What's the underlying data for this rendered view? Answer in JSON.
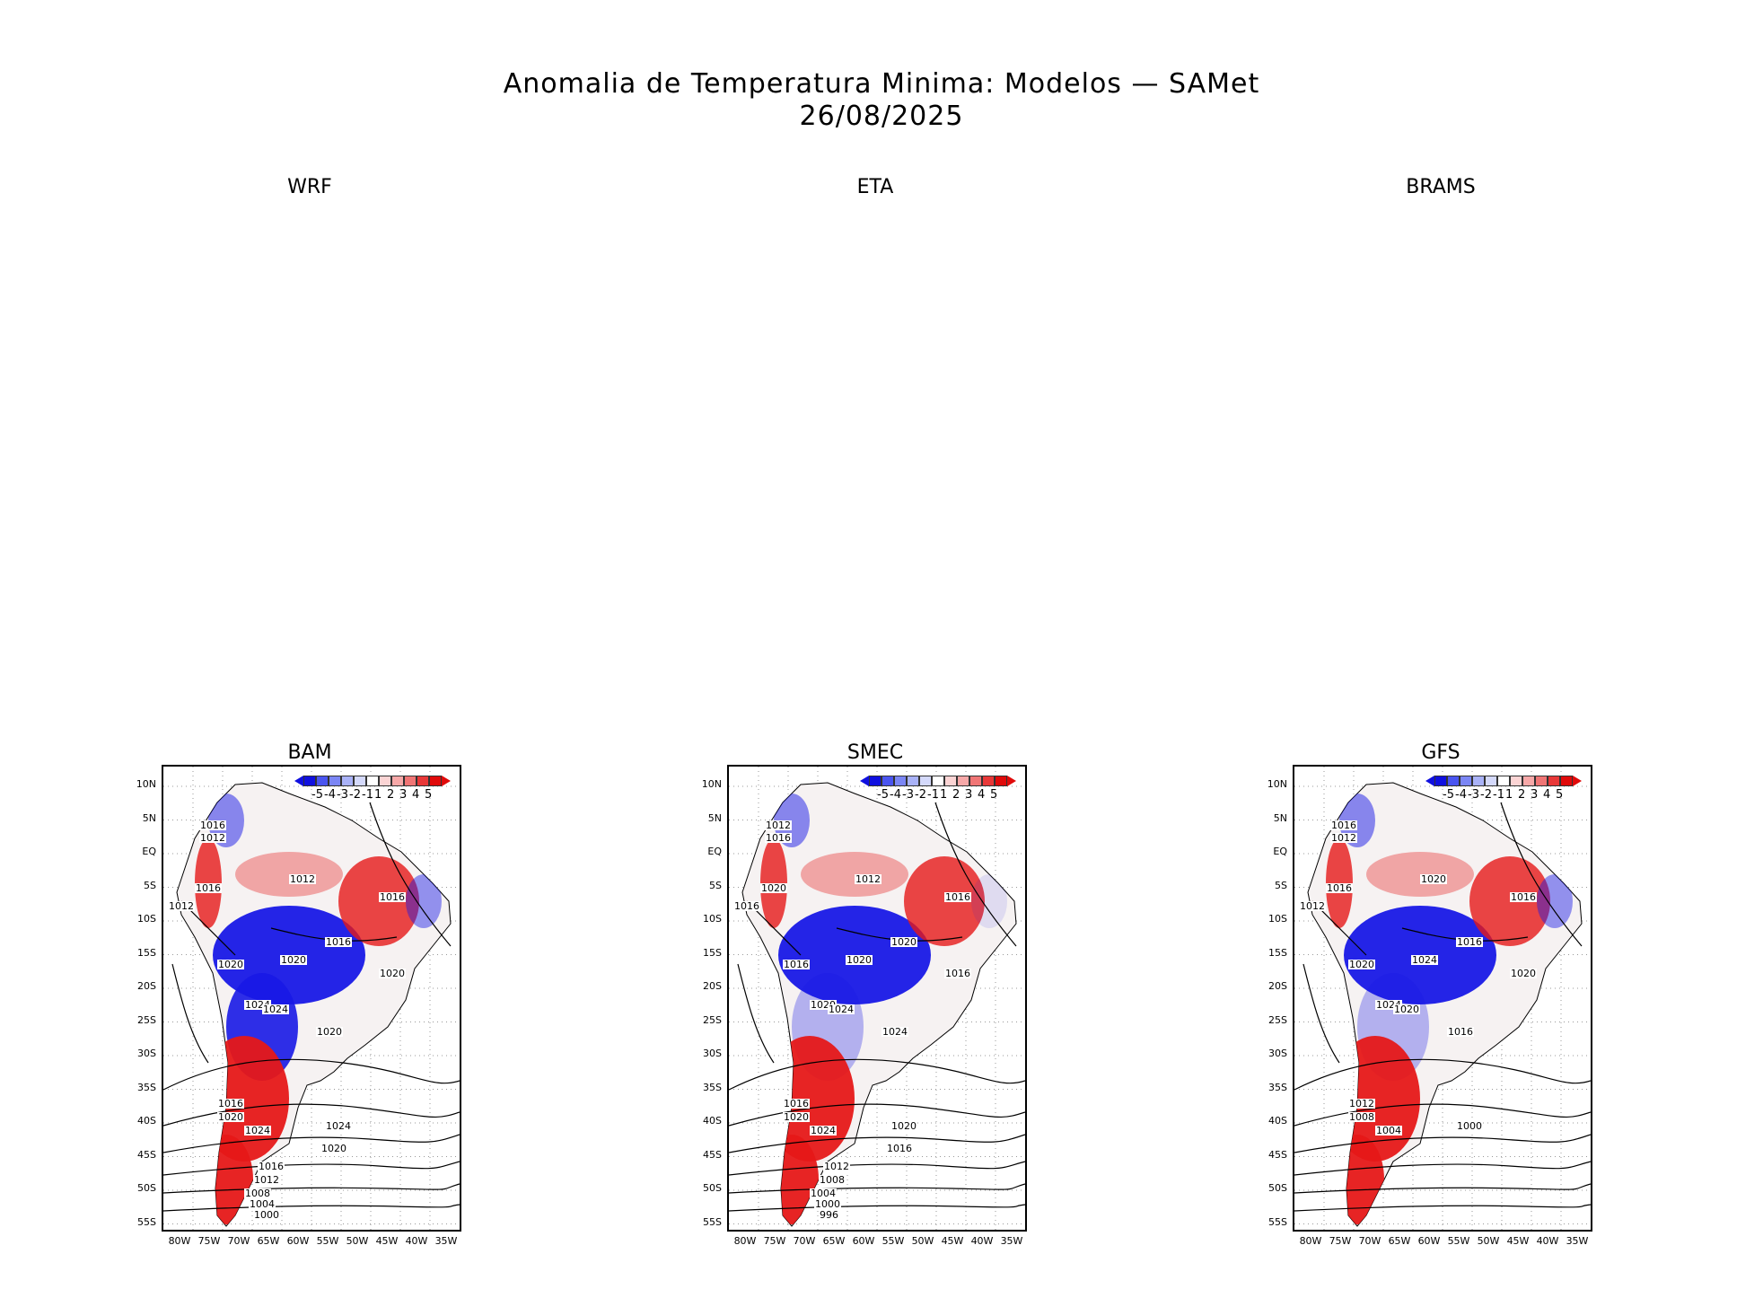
{
  "title": "Anomalia de Temperatura Minima: Modelos — SAMet",
  "date": "26/08/2025",
  "panels": [
    {
      "name": "WRF"
    },
    {
      "name": "ETA"
    },
    {
      "name": "BRAMS"
    },
    {
      "name": "BAM",
      "isobars": [
        "1016",
        "1012",
        "1016",
        "1012",
        "1012",
        "1016",
        "1020",
        "1016",
        "1020",
        "1020",
        "1024",
        "1024",
        "1020",
        "1016",
        "1020",
        "1024",
        "1024",
        "1020",
        "1016",
        "1012",
        "1008",
        "1004",
        "1000"
      ]
    },
    {
      "name": "SMEC",
      "isobars": [
        "1012",
        "1016",
        "1020",
        "1016",
        "1012",
        "1020",
        "1016",
        "1016",
        "1020",
        "1016",
        "1020",
        "1024",
        "1024",
        "1016",
        "1020",
        "1024",
        "1020",
        "1016",
        "1012",
        "1008",
        "1004",
        "1000",
        "996"
      ]
    },
    {
      "name": "GFS",
      "isobars": [
        "1016",
        "1012",
        "1016",
        "1012",
        "1020",
        "1016",
        "1020",
        "1016",
        "1024",
        "1020",
        "1024",
        "1020",
        "1016",
        "1012",
        "1008",
        "1004",
        "1000"
      ]
    }
  ],
  "y_ticks": [
    "10N",
    "5N",
    "EQ",
    "5S",
    "10S",
    "15S",
    "20S",
    "25S",
    "30S",
    "35S",
    "40S",
    "45S",
    "50S",
    "55S"
  ],
  "x_ticks": [
    "80W",
    "75W",
    "70W",
    "65W",
    "60W",
    "55W",
    "50W",
    "45W",
    "40W",
    "35W"
  ],
  "legend": {
    "labels": [
      "-5",
      "-4",
      "-3",
      "-2",
      "-1",
      "1",
      "2",
      "3",
      "4",
      "5"
    ],
    "colors": [
      "#1010e0",
      "#4a55f0",
      "#7b86f5",
      "#a9b2f8",
      "#d4d9fb",
      "#ffffff",
      "#fbd4d4",
      "#f7a8a8",
      "#f07575",
      "#e83838",
      "#e00a0a"
    ]
  },
  "colors": {
    "cold": "#1818e6",
    "warm": "#e61818",
    "land": "#ffffff"
  }
}
